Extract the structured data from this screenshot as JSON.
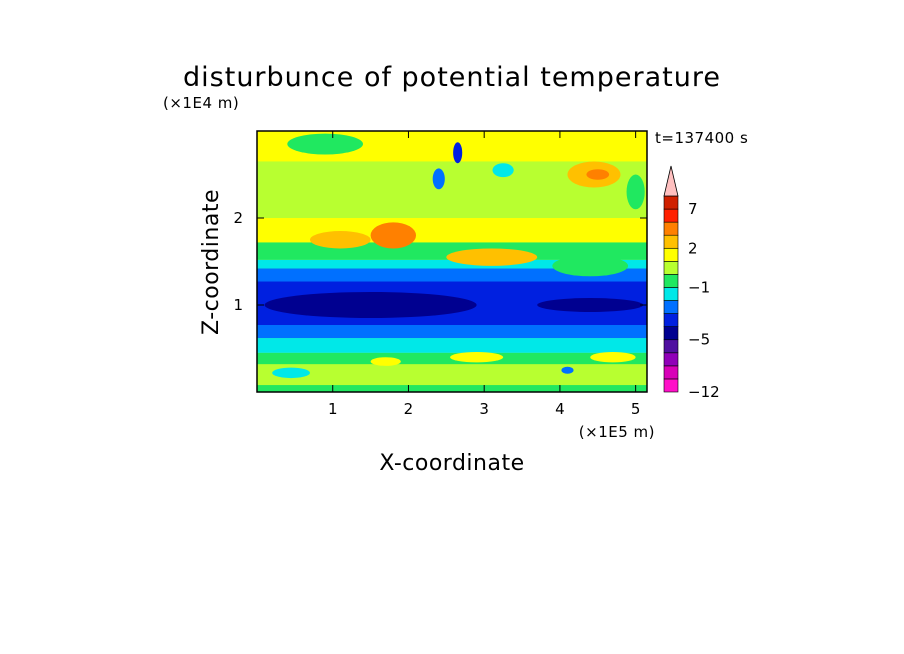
{
  "chart_data": {
    "type": "heatmap",
    "title": "disturbunce of potential temperature",
    "xlabel": "X-coordinate",
    "ylabel": "Z-coordinate",
    "x_scale_label": "(×1E5 m)",
    "y_scale_label": "(×1E4 m)",
    "time_label": "t=137400 s",
    "xlim": [
      0,
      5.15
    ],
    "ylim": [
      0,
      3.0
    ],
    "x_ticks": [
      {
        "value": 1,
        "label": "1"
      },
      {
        "value": 2,
        "label": "2"
      },
      {
        "value": 3,
        "label": "3"
      },
      {
        "value": 4,
        "label": "4"
      },
      {
        "value": 5,
        "label": "5"
      }
    ],
    "y_ticks": [
      {
        "value": 1,
        "label": "1"
      },
      {
        "value": 2,
        "label": "2"
      }
    ],
    "colorbar": {
      "levels": [
        -12,
        -10,
        -8,
        -6,
        -5,
        -4,
        -3,
        -2,
        -1,
        0,
        1,
        2,
        3,
        5,
        7,
        8,
        10
      ],
      "labeled": [
        {
          "value": -12,
          "label": "−12"
        },
        {
          "value": -5,
          "label": "−5"
        },
        {
          "value": -1,
          "label": "−1"
        },
        {
          "value": 2,
          "label": "2"
        },
        {
          "value": 7,
          "label": "7"
        }
      ],
      "colors": [
        "#ff10c8",
        "#d800b8",
        "#9000b8",
        "#5010a0",
        "#000090",
        "#0020e0",
        "#0070ff",
        "#00e8e8",
        "#20e860",
        "#b8ff30",
        "#ffff00",
        "#ffc000",
        "#ff8000",
        "#ff2000",
        "#d02000",
        "#ffc0c0"
      ],
      "extend": "max"
    },
    "bands": [
      {
        "z0": 0.0,
        "z1": 0.08,
        "value": -0.5
      },
      {
        "z0": 0.08,
        "z1": 0.32,
        "value": 0.5
      },
      {
        "z0": 0.32,
        "z1": 0.45,
        "value": -0.5
      },
      {
        "z0": 0.45,
        "z1": 0.62,
        "value": -1.5
      },
      {
        "z0": 0.62,
        "z1": 0.77,
        "value": -2.5
      },
      {
        "z0": 0.77,
        "z1": 1.27,
        "value": -3.5
      },
      {
        "z0": 1.27,
        "z1": 1.42,
        "value": -2.5
      },
      {
        "z0": 1.42,
        "z1": 1.52,
        "value": -1.5
      },
      {
        "z0": 1.52,
        "z1": 1.72,
        "value": -0.5
      },
      {
        "z0": 1.72,
        "z1": 2.0,
        "value": 1.5
      },
      {
        "z0": 2.0,
        "z1": 2.65,
        "value": 0.5
      },
      {
        "z0": 2.65,
        "z1": 3.0,
        "value": 1.2
      }
    ],
    "features": [
      {
        "x": 2.65,
        "z": 2.75,
        "rx": 0.06,
        "rz": 0.12,
        "value": -3.5
      },
      {
        "x": 2.4,
        "z": 2.45,
        "rx": 0.08,
        "rz": 0.12,
        "value": -2.5
      },
      {
        "x": 3.25,
        "z": 2.55,
        "rx": 0.14,
        "rz": 0.08,
        "value": -1.5
      },
      {
        "x": 4.45,
        "z": 2.5,
        "rx": 0.35,
        "rz": 0.15,
        "value": 2.5
      },
      {
        "x": 4.5,
        "z": 2.5,
        "rx": 0.15,
        "rz": 0.06,
        "value": 4
      },
      {
        "x": 4.4,
        "z": 1.45,
        "rx": 0.5,
        "rz": 0.12,
        "value": -0.5
      },
      {
        "x": 3.1,
        "z": 1.55,
        "rx": 0.6,
        "rz": 0.1,
        "value": 2.5
      },
      {
        "x": 1.1,
        "z": 1.75,
        "rx": 0.4,
        "rz": 0.1,
        "value": 2.5
      },
      {
        "x": 1.8,
        "z": 1.8,
        "rx": 0.3,
        "rz": 0.15,
        "value": 3.5
      },
      {
        "x": 0.45,
        "z": 0.22,
        "rx": 0.25,
        "rz": 0.06,
        "value": -1.5
      },
      {
        "x": 4.1,
        "z": 0.25,
        "rx": 0.08,
        "rz": 0.04,
        "value": -2.5
      },
      {
        "x": 2.9,
        "z": 0.4,
        "rx": 0.35,
        "rz": 0.06,
        "value": 1.5
      },
      {
        "x": 4.7,
        "z": 0.4,
        "rx": 0.3,
        "rz": 0.06,
        "value": 1.5
      },
      {
        "x": 1.7,
        "z": 0.35,
        "rx": 0.2,
        "rz": 0.05,
        "value": 1.5
      },
      {
        "x": 1.5,
        "z": 1.0,
        "rx": 1.4,
        "rz": 0.15,
        "value": -4.5
      },
      {
        "x": 4.4,
        "z": 1.0,
        "rx": 0.7,
        "rz": 0.08,
        "value": -4.5
      },
      {
        "x": 0.9,
        "z": 2.85,
        "rx": 0.5,
        "rz": 0.12,
        "value": -0.5
      },
      {
        "x": 5.0,
        "z": 2.3,
        "rx": 0.12,
        "rz": 0.2,
        "value": -0.5
      }
    ]
  }
}
